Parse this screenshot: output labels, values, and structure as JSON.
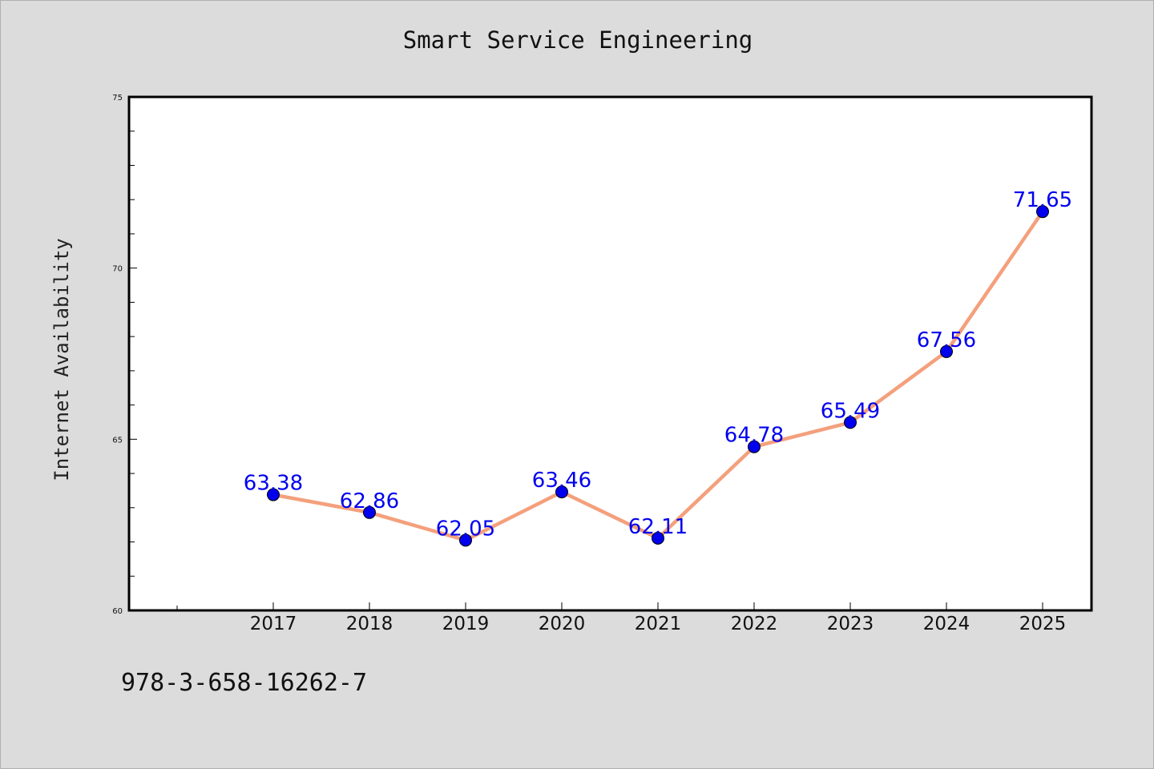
{
  "chart_data": {
    "type": "line",
    "title": "Smart Service Engineering",
    "xlabel": "",
    "ylabel": "Internet Availability",
    "categories": [
      "2017",
      "2018",
      "2019",
      "2020",
      "2021",
      "2022",
      "2023",
      "2024",
      "2025"
    ],
    "values": [
      63.38,
      62.86,
      62.05,
      63.46,
      62.11,
      64.78,
      65.49,
      67.56,
      71.65
    ],
    "data_labels": [
      "63.38",
      "62.86",
      "62.05",
      "63.46",
      "62.11",
      "64.78",
      "65.49",
      "67.56",
      "71.65"
    ],
    "ylim": [
      60,
      75
    ],
    "yticks": [
      60,
      65,
      70,
      75
    ],
    "grid": false,
    "legend": "none",
    "colors": {
      "line": "#f4a07c",
      "marker": "#0000ee",
      "data_label": "#0000ee",
      "plot_background": "#ffffff",
      "figure_background": "#dcdcdc"
    }
  },
  "footnote": "978-3-658-16262-7"
}
